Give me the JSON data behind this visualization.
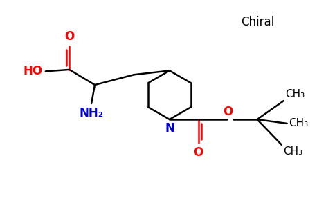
{
  "background_color": "#ffffff",
  "bond_color": "#000000",
  "oxygen_color": "#ff0000",
  "nitrogen_color": "#0000cd",
  "text_color": "#000000",
  "chiral_label": "Chiral",
  "figsize": [
    4.84,
    3.0
  ],
  "dpi": 100,
  "xlim": [
    0,
    9.68
  ],
  "ylim": [
    0,
    6.0
  ]
}
